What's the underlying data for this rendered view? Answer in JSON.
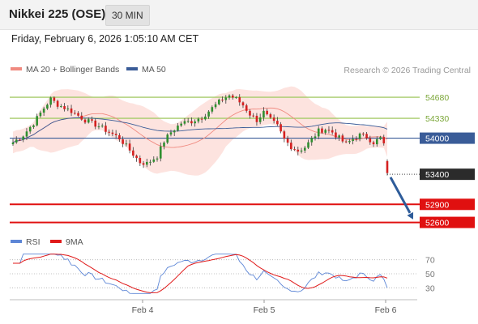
{
  "header": {
    "title": "Nikkei 225 (OSE)",
    "timeframe": "30 MIN"
  },
  "datetime": "Friday, February 6, 2026 1:05:10 AM CET",
  "legend": {
    "bollinger": {
      "label": "MA 20 + Bollinger Bands",
      "color": "#f08a80"
    },
    "ma50": {
      "label": "MA 50",
      "color": "#3a5c98"
    }
  },
  "copyright": "Research © 2026 Trading Central",
  "rsi_legend": {
    "rsi": {
      "label": "RSI",
      "color": "#5d86d6"
    },
    "ma9": {
      "label": "9MA",
      "color": "#e01a1a"
    }
  },
  "colors": {
    "up": "#2f8f2f",
    "down": "#d42020",
    "resistance": "#a6cc6a",
    "support": "#e01010",
    "pivot": "#3a5c98",
    "band": "#fde0dc",
    "arrow": "#2e5c9a"
  },
  "chart_data": {
    "type": "candlestick",
    "x_ticks": [
      "Feb 4",
      "Feb 5",
      "Feb 6"
    ],
    "y_range": [
      52500,
      54950
    ],
    "levels": [
      {
        "value": 54680,
        "label": "54680",
        "role": "resistance"
      },
      {
        "value": 54330,
        "label": "54330",
        "role": "resistance"
      },
      {
        "value": 54000,
        "label": "54000",
        "role": "pivot"
      },
      {
        "value": 53400,
        "label": "53400",
        "role": "last"
      },
      {
        "value": 52900,
        "label": "52900",
        "role": "support"
      },
      {
        "value": 52600,
        "label": "52600",
        "role": "support"
      }
    ],
    "forecast_arrow": {
      "from": 53350,
      "to": 52650
    },
    "rsi": {
      "levels": [
        70,
        50,
        30
      ],
      "ticks": [
        "70",
        "50",
        "30"
      ],
      "y_range": [
        20,
        80
      ]
    }
  }
}
